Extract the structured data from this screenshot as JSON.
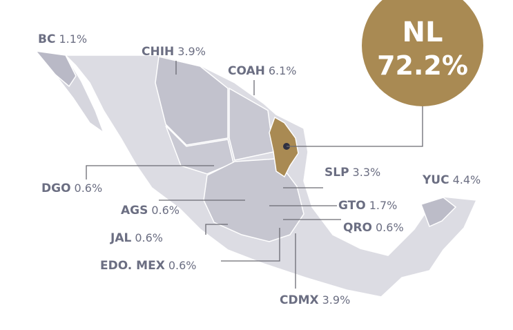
{
  "highlight": {
    "name": "NL",
    "share": "72.2%"
  },
  "states": [
    {
      "name": "BC",
      "share": "1.1%"
    },
    {
      "name": "CHIH",
      "share": "3.9%"
    },
    {
      "name": "COAH",
      "share": "6.1%"
    },
    {
      "name": "DGO",
      "share": "0.6%"
    },
    {
      "name": "AGS",
      "share": "0.6%"
    },
    {
      "name": "JAL",
      "share": "0.6%"
    },
    {
      "name": "EDO. MEX",
      "share": "0.6%"
    },
    {
      "name": "CDMX",
      "share": "3.9%"
    },
    {
      "name": "SLP",
      "share": "3.3%"
    },
    {
      "name": "GTO",
      "share": "1.7%"
    },
    {
      "name": "QRO",
      "share": "0.6%"
    },
    {
      "name": "YUC",
      "share": "4.4%"
    }
  ]
}
